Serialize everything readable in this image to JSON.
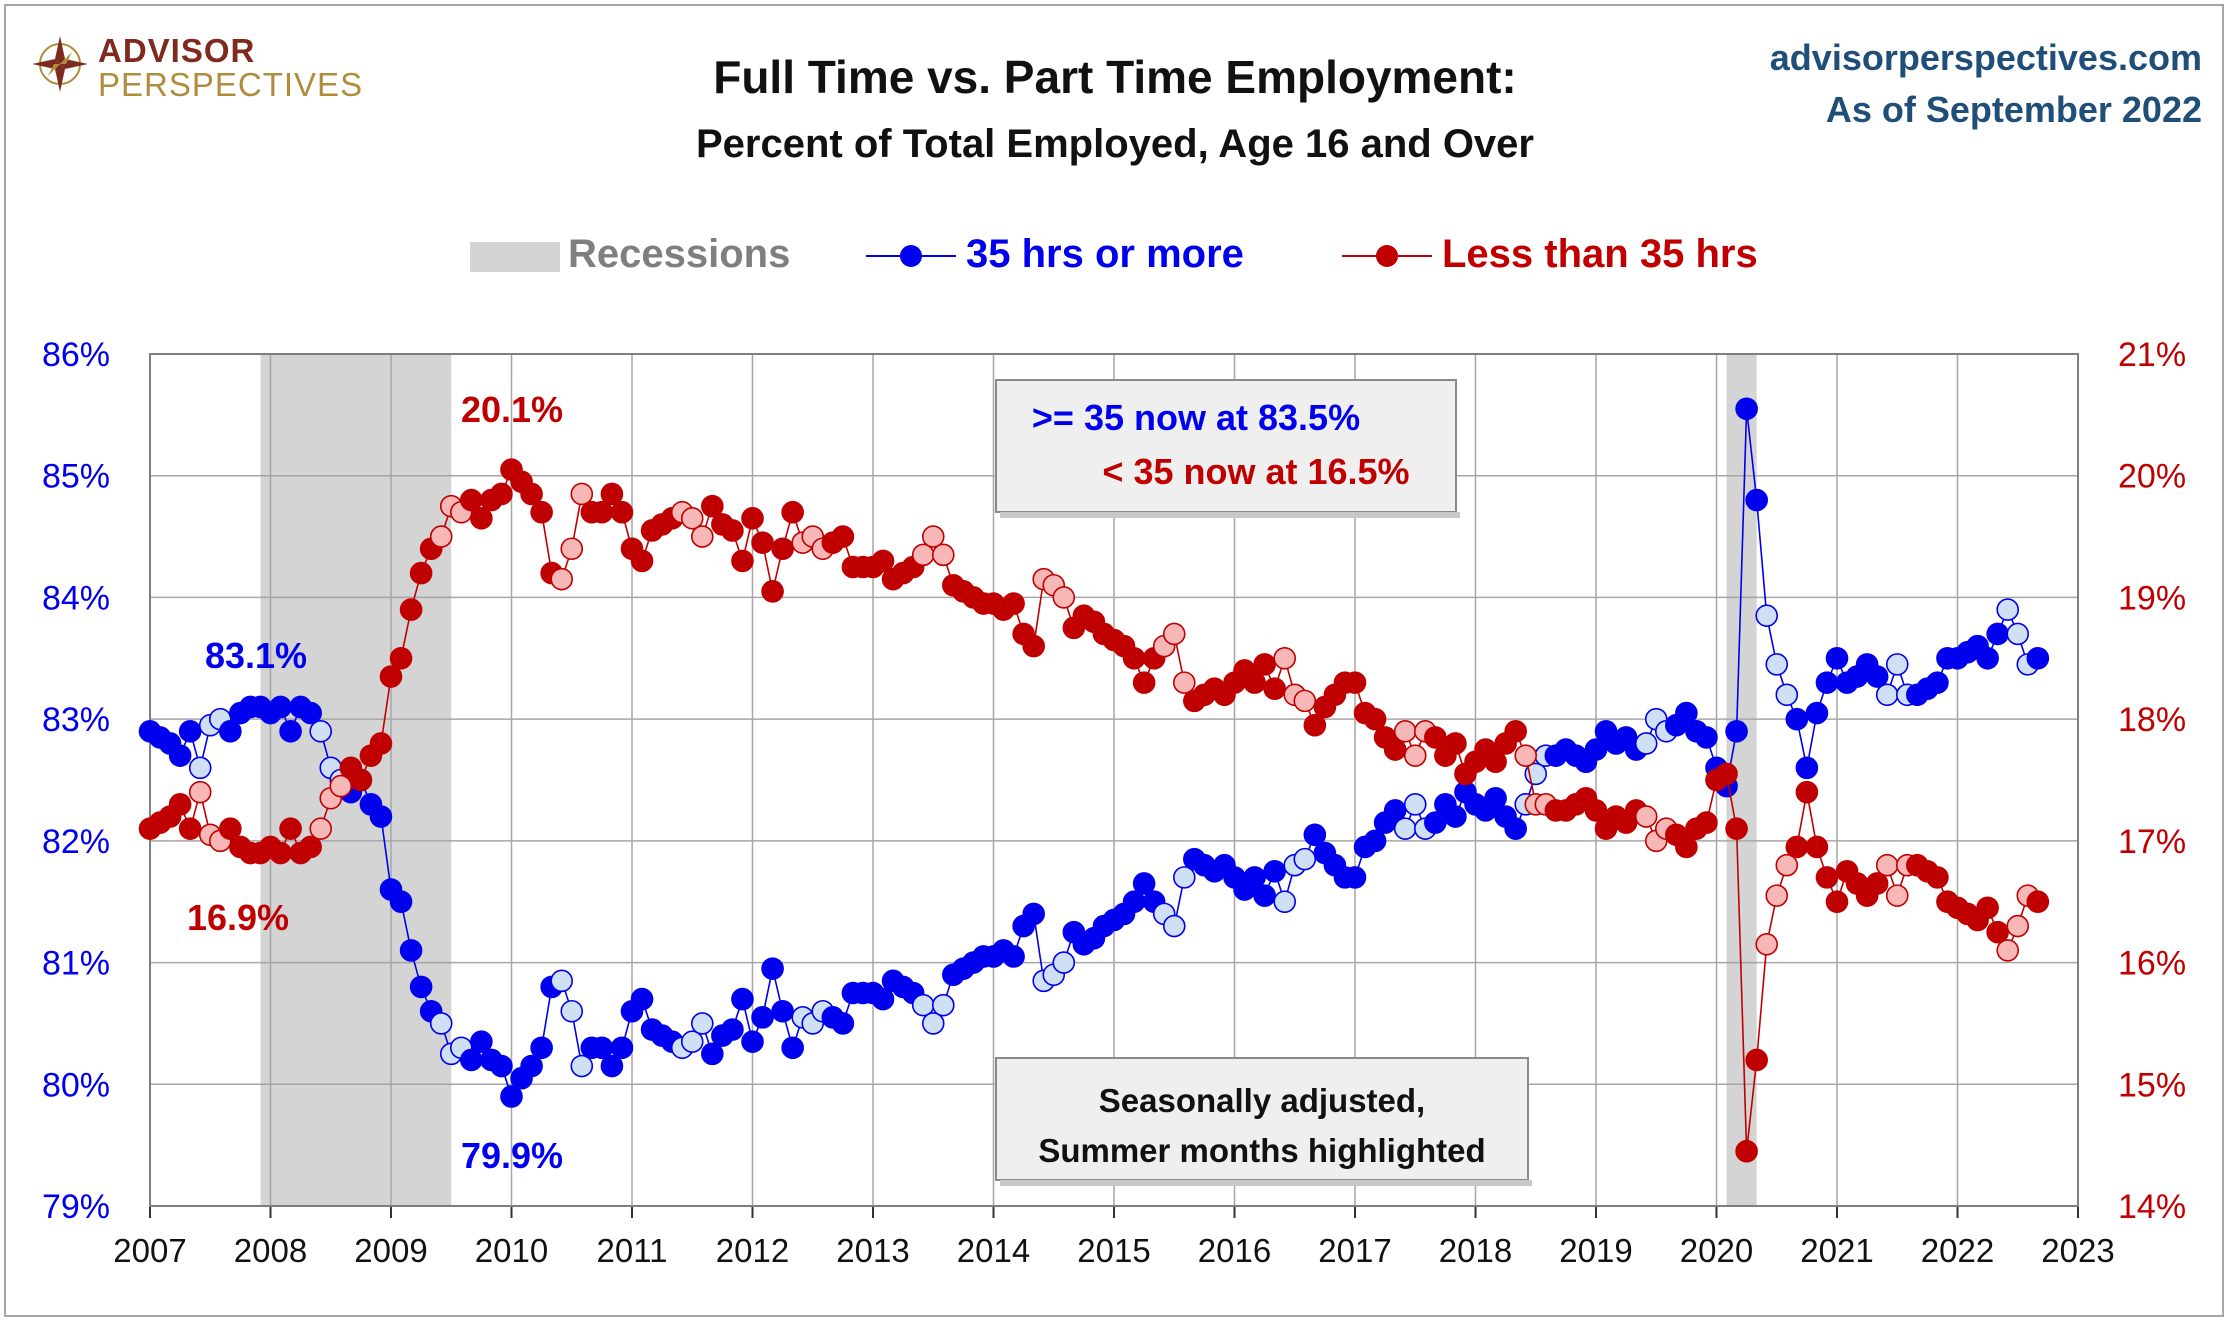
{
  "header": {
    "logo_top": "ADVISOR",
    "logo_bottom": "PERSPECTIVES",
    "title": "Full Time vs. Part Time Employment:",
    "subtitle": "Percent of Total Employed, Age 16 and Over",
    "site": "advisorperspectives.com",
    "as_of": "As of September 2022"
  },
  "legend": {
    "recessions": "Recessions",
    "full_time": "35 hrs or more",
    "part_time": "Less than 35 hrs"
  },
  "colors": {
    "full_time": "#0000ee",
    "part_time": "#c00000",
    "recession": "#d4d4d4",
    "summer_ft": "#cfe0f5",
    "summer_pt": "#f7b7b7"
  },
  "annotations": {
    "ft_peak": "83.1%",
    "ft_low": "79.9%",
    "pt_peak": "20.1%",
    "pt_low": "16.9%",
    "box1_line1": ">= 35 now at 83.5%",
    "box1_line2": "< 35 now at 16.5%",
    "box2_line1": "Seasonally adjusted,",
    "box2_line2": "Summer months highlighted"
  },
  "chart_data": {
    "type": "line",
    "x_start": "2007-01",
    "x_end": "2022-09",
    "x_ticks": [
      "2007",
      "2008",
      "2009",
      "2010",
      "2011",
      "2012",
      "2013",
      "2014",
      "2015",
      "2016",
      "2017",
      "2018",
      "2019",
      "2020",
      "2021",
      "2022",
      "2023"
    ],
    "y_left": {
      "ticks": [
        "79%",
        "80%",
        "81%",
        "82%",
        "83%",
        "84%",
        "85%",
        "86%"
      ],
      "range": [
        79,
        86
      ]
    },
    "y_right": {
      "ticks": [
        "14%",
        "15%",
        "16%",
        "17%",
        "18%",
        "19%",
        "20%",
        "21%"
      ],
      "range": [
        14,
        21
      ]
    },
    "recessions": [
      [
        "2007-12",
        "2009-06"
      ],
      [
        "2020-02",
        "2020-04"
      ]
    ],
    "summer_months": [
      6,
      7,
      8
    ],
    "series": [
      {
        "name": "35 hrs or more",
        "axis": "left",
        "start": "2007-01",
        "values": [
          82.9,
          82.85,
          82.8,
          82.7,
          82.9,
          82.6,
          82.95,
          83.0,
          82.9,
          83.05,
          83.1,
          83.1,
          83.05,
          83.1,
          82.9,
          83.1,
          83.05,
          82.9,
          82.6,
          82.5,
          82.4,
          82.5,
          82.3,
          82.2,
          81.6,
          81.5,
          81.1,
          80.8,
          80.6,
          80.5,
          80.25,
          80.3,
          80.2,
          80.35,
          80.2,
          80.15,
          79.9,
          80.05,
          80.15,
          80.3,
          80.8,
          80.85,
          80.6,
          80.15,
          80.3,
          80.3,
          80.15,
          80.3,
          80.6,
          80.7,
          80.45,
          80.4,
          80.35,
          80.3,
          80.35,
          80.5,
          80.25,
          80.4,
          80.45,
          80.7,
          80.35,
          80.55,
          80.95,
          80.6,
          80.3,
          80.55,
          80.5,
          80.6,
          80.55,
          80.5,
          80.75,
          80.75,
          80.75,
          80.7,
          80.85,
          80.8,
          80.75,
          80.65,
          80.5,
          80.65,
          80.9,
          80.95,
          81.0,
          81.05,
          81.05,
          81.1,
          81.05,
          81.3,
          81.4,
          80.85,
          80.9,
          81.0,
          81.25,
          81.15,
          81.2,
          81.3,
          81.35,
          81.4,
          81.5,
          81.65,
          81.5,
          81.4,
          81.3,
          81.7,
          81.85,
          81.8,
          81.75,
          81.8,
          81.7,
          81.6,
          81.7,
          81.55,
          81.75,
          81.5,
          81.8,
          81.85,
          82.05,
          81.9,
          81.8,
          81.7,
          81.7,
          81.95,
          82.0,
          82.15,
          82.25,
          82.1,
          82.3,
          82.1,
          82.15,
          82.3,
          82.2,
          82.4,
          82.3,
          82.25,
          82.35,
          82.2,
          82.1,
          82.3,
          82.55,
          82.7,
          82.7,
          82.75,
          82.7,
          82.65,
          82.75,
          82.9,
          82.8,
          82.85,
          82.75,
          82.8,
          83.0,
          82.9,
          82.95,
          83.05,
          82.9,
          82.85,
          82.6,
          82.45,
          82.9,
          85.55,
          84.8,
          83.85,
          83.45,
          83.2,
          83.0,
          82.6,
          83.05,
          83.3,
          83.5,
          83.3,
          83.35,
          83.45,
          83.35,
          83.2,
          83.45,
          83.2,
          83.2,
          83.25,
          83.3,
          83.5,
          83.5,
          83.55,
          83.6,
          83.5,
          83.7,
          83.9,
          83.7,
          83.45,
          83.5
        ]
      },
      {
        "name": "Less than 35 hrs",
        "axis": "right",
        "start": "2007-01",
        "values": [
          17.1,
          17.15,
          17.2,
          17.3,
          17.1,
          17.4,
          17.05,
          17.0,
          17.1,
          16.95,
          16.9,
          16.9,
          16.95,
          16.9,
          17.1,
          16.9,
          16.95,
          17.1,
          17.35,
          17.45,
          17.6,
          17.5,
          17.7,
          17.8,
          18.35,
          18.5,
          18.9,
          19.2,
          19.4,
          19.5,
          19.75,
          19.7,
          19.8,
          19.65,
          19.8,
          19.85,
          20.05,
          19.95,
          19.85,
          19.7,
          19.2,
          19.15,
          19.4,
          19.85,
          19.7,
          19.7,
          19.85,
          19.7,
          19.4,
          19.3,
          19.55,
          19.6,
          19.65,
          19.7,
          19.65,
          19.5,
          19.75,
          19.6,
          19.55,
          19.3,
          19.65,
          19.45,
          19.05,
          19.4,
          19.7,
          19.45,
          19.5,
          19.4,
          19.45,
          19.5,
          19.25,
          19.25,
          19.25,
          19.3,
          19.15,
          19.2,
          19.25,
          19.35,
          19.5,
          19.35,
          19.1,
          19.05,
          19.0,
          18.95,
          18.95,
          18.9,
          18.95,
          18.7,
          18.6,
          19.15,
          19.1,
          19.0,
          18.75,
          18.85,
          18.8,
          18.7,
          18.65,
          18.6,
          18.5,
          18.3,
          18.5,
          18.6,
          18.7,
          18.3,
          18.15,
          18.2,
          18.25,
          18.2,
          18.3,
          18.4,
          18.3,
          18.45,
          18.25,
          18.5,
          18.2,
          18.15,
          17.95,
          18.1,
          18.2,
          18.3,
          18.3,
          18.05,
          18.0,
          17.85,
          17.75,
          17.9,
          17.7,
          17.9,
          17.85,
          17.7,
          17.8,
          17.55,
          17.65,
          17.75,
          17.65,
          17.8,
          17.9,
          17.7,
          17.3,
          17.3,
          17.25,
          17.25,
          17.3,
          17.35,
          17.25,
          17.1,
          17.2,
          17.15,
          17.25,
          17.2,
          17.0,
          17.1,
          17.05,
          16.95,
          17.1,
          17.15,
          17.5,
          17.55,
          17.1,
          14.45,
          15.2,
          16.15,
          16.55,
          16.8,
          16.95,
          17.4,
          16.95,
          16.7,
          16.5,
          16.75,
          16.65,
          16.55,
          16.65,
          16.8,
          16.55,
          16.8,
          16.8,
          16.75,
          16.7,
          16.5,
          16.45,
          16.4,
          16.35,
          16.45,
          16.25,
          16.1,
          16.3,
          16.55,
          16.5
        ]
      }
    ]
  }
}
